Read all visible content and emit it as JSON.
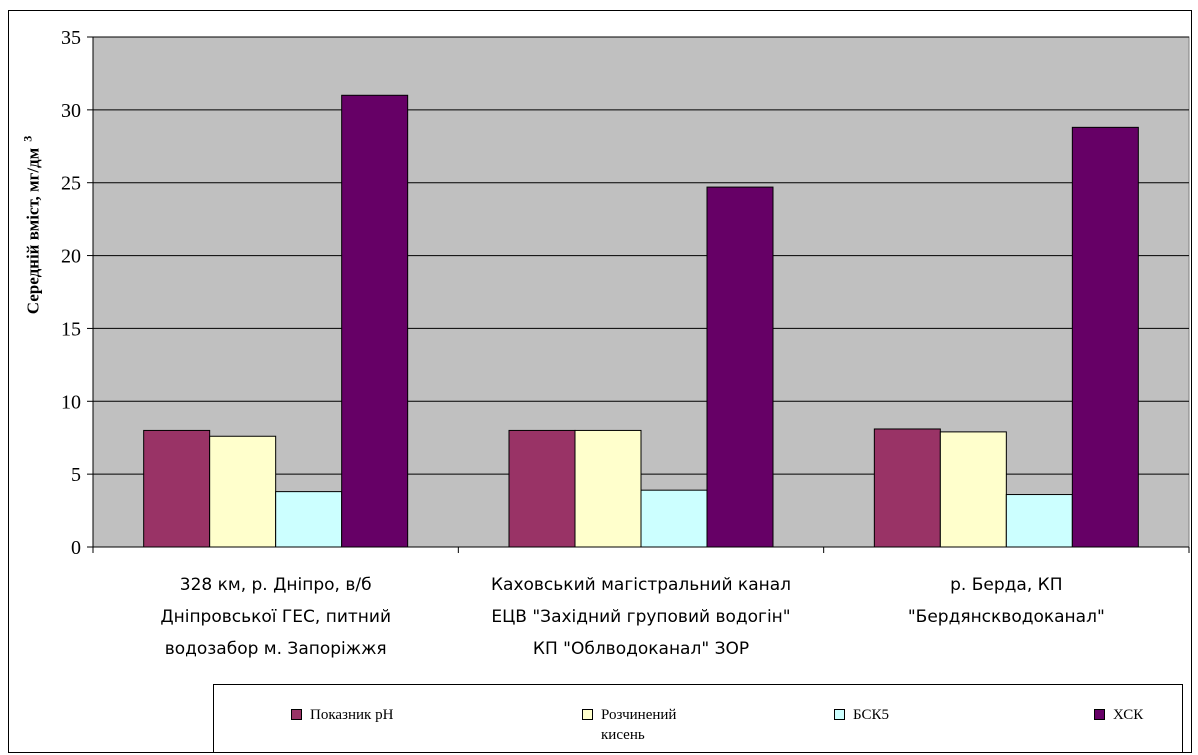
{
  "chart_data": {
    "type": "bar",
    "categories": [
      "328 км, р. Дніпро, в/б\nДніпровської ГЕС, питний\nводозабор м. Запоріжжя",
      "Каховський магістральний канал\nЕЦВ \"Західний груповий водогін\"\nКП \"Облводоканал\" ЗОР",
      "р. Берда, КП\n\"Бердянскводоканал\""
    ],
    "series": [
      {
        "name": "Показник рН",
        "color": "#993366",
        "values": [
          8.0,
          8.0,
          8.1
        ]
      },
      {
        "name": "Розчинений кисень",
        "color": "#ffffcc",
        "values": [
          7.6,
          8.0,
          7.9
        ]
      },
      {
        "name": "БСК5",
        "color": "#ccffff",
        "values": [
          3.8,
          3.9,
          3.6
        ]
      },
      {
        "name": "ХСК",
        "color": "#660066",
        "values": [
          31.0,
          24.7,
          28.8
        ]
      }
    ],
    "ylabel": "Середній вміст, мг/дм",
    "ylabel_superscript": "3",
    "ylim": [
      0,
      35
    ],
    "yticks": [
      0,
      5,
      10,
      15,
      20,
      25,
      30,
      35
    ],
    "grid": true,
    "plot_background": "#c0c0c0",
    "legend_position": "bottom-right"
  }
}
